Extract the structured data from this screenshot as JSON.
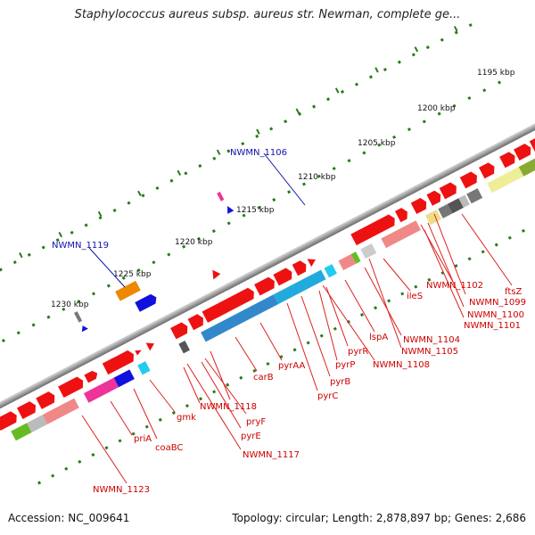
{
  "title": "Staphylococcus aureus subsp. aureus str. Newman, complete ge...",
  "footer": {
    "accession": "Accession: NC_009641",
    "summary": "Topology: circular; Length: 2,878,897 bp; Genes: 2,686"
  },
  "scale_labels": [
    "1195 kbp",
    "1200 kbp",
    "1205 kbp",
    "1210 kbp",
    "1215 kbp",
    "1220 kbp",
    "1225 kbp",
    "1230 kbp"
  ],
  "feature_labels_red": [
    "ftsZ",
    "NWMN_1099",
    "NWMN_1100",
    "NWMN_1101",
    "NWMN_1102",
    "ileS",
    "NWMN_1104",
    "NWMN_1105",
    "lspA",
    "NWMN_1108",
    "pyrR",
    "pyrP",
    "pyrB",
    "pyrC",
    "pyrAA",
    "carB",
    "NWMN_1118",
    "pryF",
    "pyrE",
    "NWMN_1117",
    "gmk",
    "coaBC",
    "priA",
    "NWMN_1123"
  ],
  "feature_labels_blue": [
    "NWMN_1106",
    "NWMN_1119"
  ],
  "colors": {
    "backbone": "#8a8a8a",
    "gene_forward": "#ee1111",
    "tick": "#2a7a1a",
    "label_red": "#cc0000",
    "label_blue": "#1010b0"
  }
}
